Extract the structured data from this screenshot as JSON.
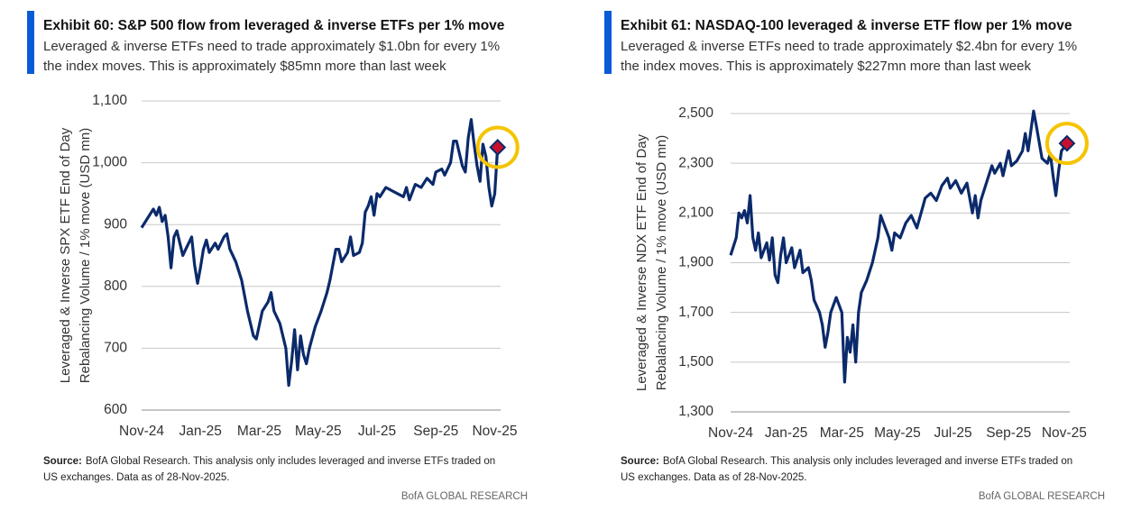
{
  "chart_data": [
    {
      "type": "line",
      "title": "Exhibit 60: S&P 500 flow from leveraged & inverse ETFs per 1% move",
      "subtitle": [
        "Leveraged & inverse ETFs need to trade approximately $1.0bn for every 1%",
        "the index moves. This is approximately $85mn more than last week"
      ],
      "ylabel": [
        "Leveraged & Inverse SPX ETF End of Day",
        "Rebalancing Volume / 1% move (USD mn)"
      ],
      "source_label": "Source:",
      "source": [
        "BofA Global Research.  This analysis only includes leveraged and inverse ETFs traded on",
        "US exchanges.  Data as of 28-Nov-2025."
      ],
      "footer": "BofA GLOBAL RESEARCH",
      "color": "#0b2a6b",
      "marker_color": "#c8102e",
      "highlight_color": "#f5c400",
      "x": [
        0,
        0.2,
        0.4,
        0.5,
        0.6,
        0.7,
        0.8,
        0.9,
        1.0,
        1.1,
        1.2,
        1.4,
        1.5,
        1.6,
        1.7,
        1.8,
        1.9,
        2.0,
        2.1,
        2.2,
        2.3,
        2.5,
        2.6,
        2.8,
        2.9,
        3.0,
        3.2,
        3.4,
        3.6,
        3.8,
        3.9,
        4.1,
        4.3,
        4.4,
        4.5,
        4.7,
        4.9,
        5.0,
        5.1,
        5.2,
        5.3,
        5.4,
        5.5,
        5.6,
        5.7,
        5.9,
        6.1,
        6.3,
        6.4,
        6.6,
        6.7,
        6.8,
        7.0,
        7.1,
        7.2,
        7.4,
        7.5,
        7.6,
        7.7,
        7.8,
        7.9,
        8.0,
        8.1,
        8.3,
        8.5,
        8.7,
        8.9,
        9.0,
        9.1,
        9.3,
        9.5,
        9.7,
        9.9,
        10.0,
        10.2,
        10.3,
        10.5,
        10.6,
        10.7,
        10.9,
        11.0,
        11.1,
        11.2,
        11.3,
        11.4,
        11.5,
        11.6,
        11.7,
        11.8,
        11.9,
        12.0,
        12.1
      ],
      "values": [
        895,
        910,
        925,
        915,
        928,
        905,
        915,
        880,
        830,
        880,
        890,
        850,
        860,
        870,
        880,
        835,
        805,
        830,
        860,
        875,
        855,
        870,
        860,
        880,
        885,
        860,
        840,
        810,
        760,
        720,
        715,
        760,
        775,
        790,
        760,
        740,
        700,
        640,
        680,
        730,
        665,
        720,
        690,
        675,
        700,
        735,
        760,
        790,
        810,
        860,
        860,
        840,
        855,
        880,
        850,
        855,
        870,
        920,
        930,
        945,
        915,
        950,
        945,
        960,
        955,
        950,
        945,
        960,
        940,
        965,
        960,
        975,
        965,
        985,
        990,
        980,
        1000,
        1035,
        1035,
        995,
        985,
        1040,
        1070,
        1030,
        995,
        970,
        1030,
        1010,
        960,
        930,
        950,
        1025
      ],
      "xlim": [
        0,
        12.2
      ],
      "xticks": [
        {
          "value": 0,
          "label": "Nov-24"
        },
        {
          "value": 2,
          "label": "Jan-25"
        },
        {
          "value": 4,
          "label": "Mar-25"
        },
        {
          "value": 6,
          "label": "May-25"
        },
        {
          "value": 8,
          "label": "Jul-25"
        },
        {
          "value": 10,
          "label": "Sep-25"
        },
        {
          "value": 12,
          "label": "Nov-25"
        }
      ],
      "ylim": [
        600,
        1100
      ],
      "yticks": [
        600,
        700,
        800,
        900,
        {
          "value": 1000,
          "label": "1,000"
        },
        {
          "value": 1100,
          "label": "1,100"
        }
      ],
      "grid": true
    },
    {
      "type": "line",
      "title": "Exhibit 61: NASDAQ-100 leveraged & inverse ETF flow per 1% move",
      "subtitle": [
        "Leveraged & inverse ETFs need to trade approximately $2.4bn for every 1%",
        "the index moves. This is approximately $227mn more than last week"
      ],
      "ylabel": [
        "Leveraged & Inverse NDX ETF End of Day",
        "Rebalancing Volume / 1% move (USD mn)"
      ],
      "source_label": "Source:",
      "source": [
        "BofA Global Research.  This analysis only includes leveraged and inverse ETFs traded on",
        "US exchanges.  Data as of 28-Nov-2025."
      ],
      "footer": "BofA GLOBAL RESEARCH",
      "color": "#0b2a6b",
      "marker_color": "#c8102e",
      "highlight_color": "#f5c400",
      "x": [
        0,
        0.2,
        0.3,
        0.4,
        0.5,
        0.6,
        0.7,
        0.8,
        0.9,
        1.0,
        1.1,
        1.3,
        1.4,
        1.5,
        1.6,
        1.7,
        1.8,
        1.9,
        2.0,
        2.2,
        2.3,
        2.5,
        2.6,
        2.8,
        2.9,
        3.0,
        3.2,
        3.3,
        3.4,
        3.5,
        3.6,
        3.8,
        4.0,
        4.1,
        4.2,
        4.3,
        4.4,
        4.5,
        4.6,
        4.7,
        4.9,
        5.1,
        5.3,
        5.4,
        5.5,
        5.7,
        5.8,
        5.9,
        6.1,
        6.3,
        6.5,
        6.7,
        6.9,
        7.0,
        7.2,
        7.4,
        7.6,
        7.8,
        7.9,
        8.1,
        8.3,
        8.5,
        8.7,
        8.8,
        8.9,
        9.0,
        9.2,
        9.4,
        9.5,
        9.7,
        9.8,
        10.0,
        10.1,
        10.3,
        10.5,
        10.6,
        10.7,
        10.9,
        11.0,
        11.2,
        11.4,
        11.5,
        11.6,
        11.7,
        11.8,
        11.9,
        12.1
      ],
      "values": [
        1930,
        2000,
        2100,
        2080,
        2110,
        2060,
        2170,
        2000,
        1950,
        2020,
        1920,
        1980,
        1910,
        2000,
        1850,
        1820,
        1930,
        2000,
        1900,
        1960,
        1880,
        1950,
        1860,
        1880,
        1830,
        1750,
        1700,
        1650,
        1560,
        1620,
        1700,
        1760,
        1700,
        1420,
        1600,
        1540,
        1650,
        1500,
        1700,
        1780,
        1830,
        1900,
        2000,
        2090,
        2060,
        2000,
        1950,
        2020,
        2000,
        2060,
        2090,
        2040,
        2120,
        2160,
        2180,
        2150,
        2210,
        2240,
        2200,
        2230,
        2180,
        2220,
        2100,
        2170,
        2080,
        2150,
        2220,
        2290,
        2260,
        2300,
        2250,
        2350,
        2290,
        2310,
        2350,
        2420,
        2350,
        2510,
        2450,
        2320,
        2300,
        2340,
        2250,
        2170,
        2270,
        2350,
        2380
      ],
      "xlim": [
        0,
        12.2
      ],
      "xticks": [
        {
          "value": 0,
          "label": "Nov-24"
        },
        {
          "value": 2,
          "label": "Jan-25"
        },
        {
          "value": 4,
          "label": "Mar-25"
        },
        {
          "value": 6,
          "label": "May-25"
        },
        {
          "value": 8,
          "label": "Jul-25"
        },
        {
          "value": 10,
          "label": "Sep-25"
        },
        {
          "value": 12,
          "label": "Nov-25"
        }
      ],
      "ylim": [
        1300,
        2500
      ],
      "yticks": [
        {
          "value": 1300,
          "label": "1,300"
        },
        {
          "value": 1500,
          "label": "1,500"
        },
        {
          "value": 1700,
          "label": "1,700"
        },
        {
          "value": 1900,
          "label": "1,900"
        },
        {
          "value": 2100,
          "label": "2,100"
        },
        {
          "value": 2300,
          "label": "2,300"
        },
        {
          "value": 2500,
          "label": "2,500"
        }
      ],
      "grid": true
    }
  ]
}
